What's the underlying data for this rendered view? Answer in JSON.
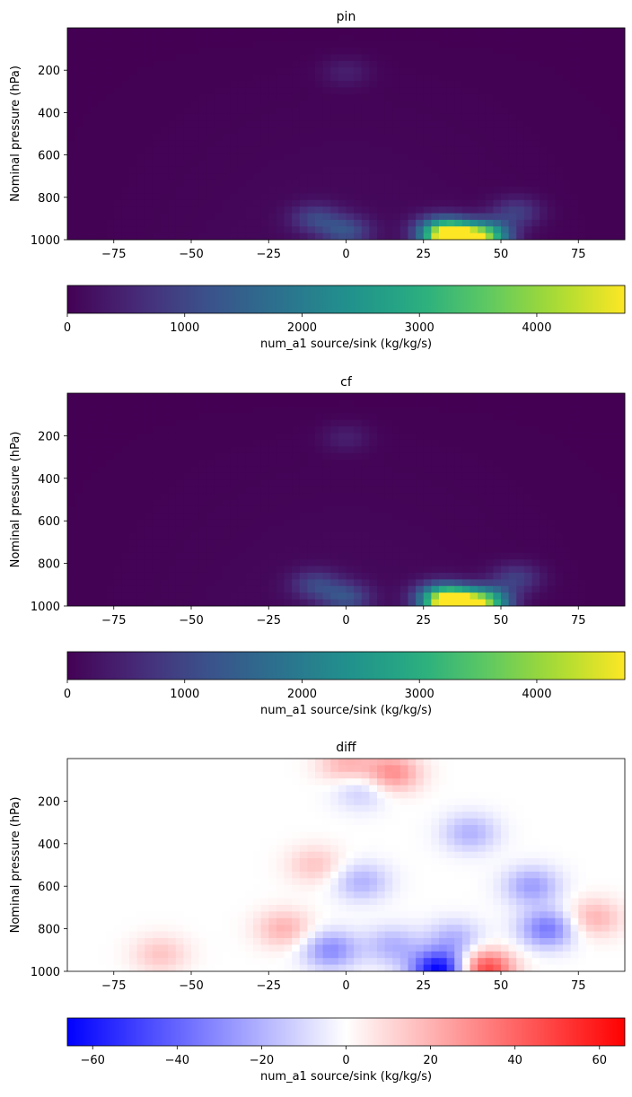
{
  "chart_data": [
    {
      "type": "heatmap",
      "title": "pin",
      "ylabel": "Nominal pressure (hPa)",
      "xlabel": "",
      "x_ticks": [
        "−75",
        "−50",
        "−25",
        "0",
        "25",
        "50",
        "75"
      ],
      "x_tick_values": [
        -75,
        -50,
        -25,
        0,
        25,
        50,
        75
      ],
      "y_ticks": [
        "200",
        "400",
        "600",
        "800",
        "1000"
      ],
      "y_tick_values": [
        200,
        400,
        600,
        800,
        1000
      ],
      "xlim": [
        -90,
        90
      ],
      "ylim": [
        1000,
        0
      ],
      "colormap": "viridis",
      "colorbar": {
        "label": "num_a1 source/sink (kg/kg/s)",
        "ticks": [
          "0",
          "1000",
          "2000",
          "3000",
          "4000"
        ],
        "tick_values": [
          0,
          1000,
          2000,
          3000,
          4000
        ],
        "range": [
          0,
          4750
        ]
      },
      "features": [
        {
          "lat": 35,
          "p": 995,
          "value": 4750
        },
        {
          "lat": 45,
          "p": 985,
          "value": 3300
        },
        {
          "lat": 30,
          "p": 960,
          "value": 2100
        },
        {
          "lat": 0,
          "p": 960,
          "value": 1100
        },
        {
          "lat": -10,
          "p": 900,
          "value": 900
        },
        {
          "lat": 55,
          "p": 870,
          "value": 850
        },
        {
          "lat": 0,
          "p": 210,
          "value": 400
        }
      ]
    },
    {
      "type": "heatmap",
      "title": "cf",
      "ylabel": "Nominal pressure (hPa)",
      "xlabel": "",
      "x_ticks": [
        "−75",
        "−50",
        "−25",
        "0",
        "25",
        "50",
        "75"
      ],
      "x_tick_values": [
        -75,
        -50,
        -25,
        0,
        25,
        50,
        75
      ],
      "y_ticks": [
        "200",
        "400",
        "600",
        "800",
        "1000"
      ],
      "y_tick_values": [
        200,
        400,
        600,
        800,
        1000
      ],
      "xlim": [
        -90,
        90
      ],
      "ylim": [
        1000,
        0
      ],
      "colormap": "viridis",
      "colorbar": {
        "label": "num_a1 source/sink (kg/kg/s)",
        "ticks": [
          "0",
          "1000",
          "2000",
          "3000",
          "4000"
        ],
        "tick_values": [
          0,
          1000,
          2000,
          3000,
          4000
        ],
        "range": [
          0,
          4750
        ]
      },
      "features": [
        {
          "lat": 35,
          "p": 995,
          "value": 4750
        },
        {
          "lat": 45,
          "p": 985,
          "value": 3300
        },
        {
          "lat": 30,
          "p": 960,
          "value": 2100
        },
        {
          "lat": 0,
          "p": 960,
          "value": 1100
        },
        {
          "lat": -10,
          "p": 900,
          "value": 900
        },
        {
          "lat": 55,
          "p": 870,
          "value": 850
        },
        {
          "lat": 0,
          "p": 210,
          "value": 400
        }
      ]
    },
    {
      "type": "heatmap",
      "title": "diff",
      "ylabel": "Nominal pressure (hPa)",
      "xlabel": "",
      "x_ticks": [
        "−75",
        "−50",
        "−25",
        "0",
        "25",
        "50",
        "75"
      ],
      "x_tick_values": [
        -75,
        -50,
        -25,
        0,
        25,
        50,
        75
      ],
      "y_ticks": [
        "200",
        "400",
        "600",
        "800",
        "1000"
      ],
      "y_tick_values": [
        200,
        400,
        600,
        800,
        1000
      ],
      "xlim": [
        -90,
        90
      ],
      "ylim": [
        1000,
        0
      ],
      "colormap": "bwr",
      "colorbar": {
        "label": "num_a1 source/sink (kg/kg/s)",
        "ticks": [
          "−60",
          "−40",
          "−20",
          "0",
          "20",
          "40",
          "60"
        ],
        "tick_values": [
          -60,
          -40,
          -20,
          0,
          20,
          40,
          60
        ],
        "range": [
          -66,
          66
        ]
      },
      "features": [
        {
          "lat": 45,
          "p": 990,
          "value": 50
        },
        {
          "lat": 30,
          "p": 995,
          "value": -66
        },
        {
          "lat": 65,
          "p": 800,
          "value": -35
        },
        {
          "lat": 60,
          "p": 600,
          "value": -25
        },
        {
          "lat": 40,
          "p": 350,
          "value": -20
        },
        {
          "lat": -5,
          "p": 900,
          "value": -30
        },
        {
          "lat": 15,
          "p": 880,
          "value": -20
        },
        {
          "lat": 35,
          "p": 850,
          "value": -20
        },
        {
          "lat": -20,
          "p": 800,
          "value": 20
        },
        {
          "lat": -10,
          "p": 500,
          "value": 15
        },
        {
          "lat": 15,
          "p": 70,
          "value": 30
        },
        {
          "lat": 0,
          "p": 30,
          "value": 20
        },
        {
          "lat": 80,
          "p": 750,
          "value": 20
        },
        {
          "lat": -60,
          "p": 920,
          "value": 15
        },
        {
          "lat": 5,
          "p": 150,
          "value": -15
        },
        {
          "lat": 5,
          "p": 580,
          "value": -20
        }
      ]
    }
  ]
}
